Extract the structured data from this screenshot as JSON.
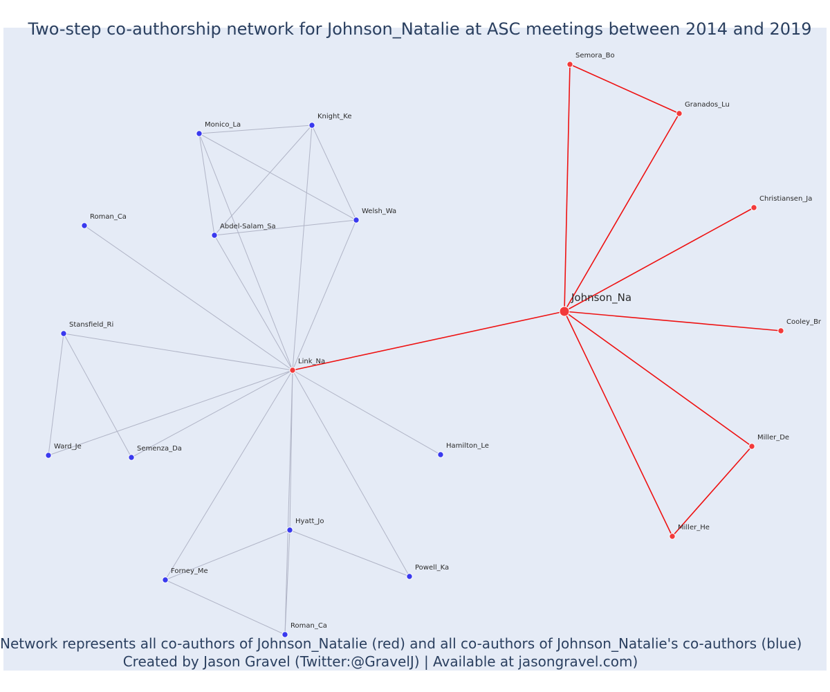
{
  "title": "Two-step co-authorship network for Johnson_Natalie at ASC meetings between 2014 and 2019",
  "caption_line1": "Network represents all co-authors of Johnson_Natalie (red) and all co-authors of Johnson_Natalie's co-authors (blue)",
  "caption_line2": "Created by Jason Gravel (Twitter:@GravelJ) | Available at jasongravel.com)",
  "colors": {
    "background": "#e5ebf6",
    "red": "#ee1111",
    "red_node": "#f23a3a",
    "blue_node": "#3a3aee",
    "grey_edge": "#b0b4c6",
    "text": "#2a3f5f"
  },
  "chart_data": {
    "type": "network",
    "nodes": [
      {
        "id": "johnson",
        "label": "Johnson_Na",
        "group": "red",
        "focal": true
      },
      {
        "id": "semora",
        "label": "Semora_Bo",
        "group": "red"
      },
      {
        "id": "granados",
        "label": "Granados_Lu",
        "group": "red"
      },
      {
        "id": "christiansen",
        "label": "Christiansen_Ja",
        "group": "red"
      },
      {
        "id": "cooley",
        "label": "Cooley_Br",
        "group": "red"
      },
      {
        "id": "millerde",
        "label": "Miller_De",
        "group": "red"
      },
      {
        "id": "millerhe",
        "label": "Miller_He",
        "group": "red"
      },
      {
        "id": "link",
        "label": "Link_Na",
        "group": "red"
      },
      {
        "id": "monico",
        "label": "Monico_La",
        "group": "blue"
      },
      {
        "id": "knight",
        "label": "Knight_Ke",
        "group": "blue"
      },
      {
        "id": "welsh",
        "label": "Welsh_Wa",
        "group": "blue"
      },
      {
        "id": "abdel",
        "label": "Abdel-Salam_Sa",
        "group": "blue"
      },
      {
        "id": "romanca1",
        "label": "Roman_Ca",
        "group": "blue"
      },
      {
        "id": "stansfield",
        "label": "Stansfield_Ri",
        "group": "blue"
      },
      {
        "id": "ward",
        "label": "Ward_Je",
        "group": "blue"
      },
      {
        "id": "semenza",
        "label": "Semenza_Da",
        "group": "blue"
      },
      {
        "id": "hamilton",
        "label": "Hamilton_Le",
        "group": "blue"
      },
      {
        "id": "hyatt",
        "label": "Hyatt_Jo",
        "group": "blue"
      },
      {
        "id": "powell",
        "label": "Powell_Ka",
        "group": "blue"
      },
      {
        "id": "forney",
        "label": "Forney_Me",
        "group": "blue"
      },
      {
        "id": "romanca2",
        "label": "Roman_Ca",
        "group": "blue"
      }
    ],
    "edges": [
      {
        "source": "johnson",
        "target": "semora",
        "group": "red"
      },
      {
        "source": "johnson",
        "target": "granados",
        "group": "red"
      },
      {
        "source": "semora",
        "target": "granados",
        "group": "red"
      },
      {
        "source": "johnson",
        "target": "christiansen",
        "group": "red"
      },
      {
        "source": "johnson",
        "target": "cooley",
        "group": "red"
      },
      {
        "source": "johnson",
        "target": "millerde",
        "group": "red"
      },
      {
        "source": "johnson",
        "target": "millerhe",
        "group": "red"
      },
      {
        "source": "millerde",
        "target": "millerhe",
        "group": "red"
      },
      {
        "source": "johnson",
        "target": "link",
        "group": "red"
      },
      {
        "source": "monico",
        "target": "knight",
        "group": "blue"
      },
      {
        "source": "monico",
        "target": "welsh",
        "group": "blue"
      },
      {
        "source": "monico",
        "target": "abdel",
        "group": "blue"
      },
      {
        "source": "monico",
        "target": "link",
        "group": "blue"
      },
      {
        "source": "knight",
        "target": "abdel",
        "group": "blue"
      },
      {
        "source": "knight",
        "target": "welsh",
        "group": "blue"
      },
      {
        "source": "knight",
        "target": "link",
        "group": "blue"
      },
      {
        "source": "abdel",
        "target": "welsh",
        "group": "blue"
      },
      {
        "source": "abdel",
        "target": "link",
        "group": "blue"
      },
      {
        "source": "welsh",
        "target": "link",
        "group": "blue"
      },
      {
        "source": "romanca1",
        "target": "link",
        "group": "blue"
      },
      {
        "source": "stansfield",
        "target": "link",
        "group": "blue"
      },
      {
        "source": "stansfield",
        "target": "ward",
        "group": "blue"
      },
      {
        "source": "stansfield",
        "target": "semenza",
        "group": "blue"
      },
      {
        "source": "ward",
        "target": "link",
        "group": "blue"
      },
      {
        "source": "semenza",
        "target": "link",
        "group": "blue"
      },
      {
        "source": "hamilton",
        "target": "link",
        "group": "blue"
      },
      {
        "source": "hyatt",
        "target": "link",
        "group": "blue"
      },
      {
        "source": "hyatt",
        "target": "powell",
        "group": "blue"
      },
      {
        "source": "hyatt",
        "target": "forney",
        "group": "blue"
      },
      {
        "source": "hyatt",
        "target": "romanca2",
        "group": "blue"
      },
      {
        "source": "powell",
        "target": "link",
        "group": "blue"
      },
      {
        "source": "forney",
        "target": "link",
        "group": "blue"
      },
      {
        "source": "forney",
        "target": "romanca2",
        "group": "blue"
      },
      {
        "source": "romanca2",
        "target": "link",
        "group": "blue"
      }
    ]
  }
}
